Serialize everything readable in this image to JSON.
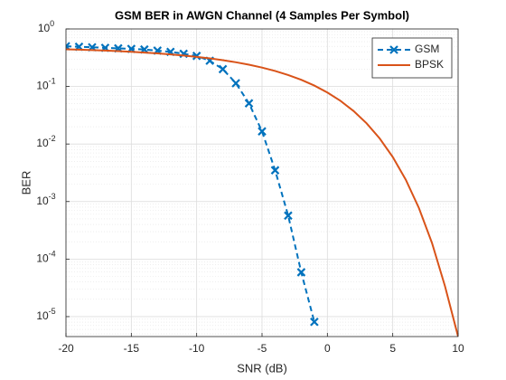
{
  "chart_data": {
    "type": "line",
    "title": "GSM BER in AWGN Channel (4 Samples Per Symbol)",
    "x_label": "SNR (dB)",
    "y_label": "BER",
    "log_y": true,
    "grid": true,
    "minor_grid": true,
    "legend_position": "northeast",
    "xlim": [
      -20,
      10
    ],
    "xticks": [
      -20,
      -15,
      -10,
      -5,
      0,
      5,
      10
    ],
    "ylim": [
      4.5e-06,
      1
    ],
    "yticks": [
      {
        "value": 1e-05,
        "label": "10^-5"
      },
      {
        "value": 0.0001,
        "label": "10^-4"
      },
      {
        "value": 0.001,
        "label": "10^-3"
      },
      {
        "value": 0.01,
        "label": "10^-2"
      },
      {
        "value": 0.1,
        "label": "10^-1"
      },
      {
        "value": 1,
        "label": "10^0"
      }
    ],
    "series": [
      {
        "name": "GSM",
        "color": "#0072BD",
        "style": "dashed",
        "marker": "x",
        "x": [
          -20,
          -19,
          -18,
          -17,
          -16,
          -15,
          -14,
          -13,
          -12,
          -11,
          -10,
          -9,
          -8,
          -7,
          -6,
          -5,
          -4,
          -3,
          -2,
          -1
        ],
        "values": [
          0.5,
          0.49,
          0.48,
          0.47,
          0.46,
          0.45,
          0.44,
          0.42,
          0.4,
          0.37,
          0.34,
          0.28,
          0.2,
          0.114,
          0.051,
          0.0166,
          0.0035,
          0.00057,
          5.9e-05,
          8.1e-06
        ]
      },
      {
        "name": "BPSK",
        "color": "#D95319",
        "style": "solid",
        "marker": null,
        "x": [
          -20,
          -19,
          -18,
          -17,
          -16,
          -15,
          -14,
          -13,
          -12,
          -11,
          -10,
          -9,
          -8,
          -7,
          -6,
          -5,
          -4,
          -3,
          -2,
          -1,
          0,
          1,
          2,
          3,
          4,
          5,
          6,
          7,
          8,
          9,
          10
        ],
        "values": [
          0.4438,
          0.437,
          0.4294,
          0.4208,
          0.4113,
          0.4007,
          0.3889,
          0.3758,
          0.3612,
          0.3451,
          0.3274,
          0.3079,
          0.2867,
          0.2638,
          0.2392,
          0.2132,
          0.1861,
          0.1584,
          0.1306,
          0.1038,
          0.0786,
          0.0563,
          0.0375,
          0.0229,
          0.0125,
          0.00595,
          0.00239,
          0.000773,
          0.000191,
          3.36e-05,
          4.5e-06
        ]
      }
    ]
  }
}
